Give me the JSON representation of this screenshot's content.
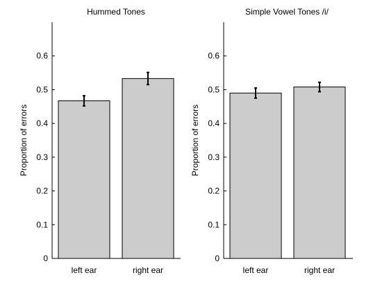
{
  "chart_data": [
    {
      "type": "bar",
      "title": "Hummed Tones",
      "xlabel": "",
      "ylabel": "Proportion of errors",
      "categories": [
        "left ear",
        "right ear"
      ],
      "values": [
        0.467,
        0.533
      ],
      "error": [
        0.015,
        0.018
      ],
      "ylim": [
        0,
        0.7
      ],
      "yticks": [
        "0",
        "0.1",
        "0.2",
        "0.3",
        "0.4",
        "0.5",
        "0.6"
      ],
      "bar_color": "#cccccc",
      "grid": false
    },
    {
      "type": "bar",
      "title": "Simple Vowel Tones /i/",
      "xlabel": "",
      "ylabel": "Proportion of errors",
      "categories": [
        "left ear",
        "right ear"
      ],
      "values": [
        0.49,
        0.508
      ],
      "error": [
        0.015,
        0.014
      ],
      "ylim": [
        0,
        0.7
      ],
      "yticks": [
        "0",
        "0.1",
        "0.2",
        "0.3",
        "0.4",
        "0.5",
        "0.6"
      ],
      "bar_color": "#cccccc",
      "grid": false
    }
  ]
}
